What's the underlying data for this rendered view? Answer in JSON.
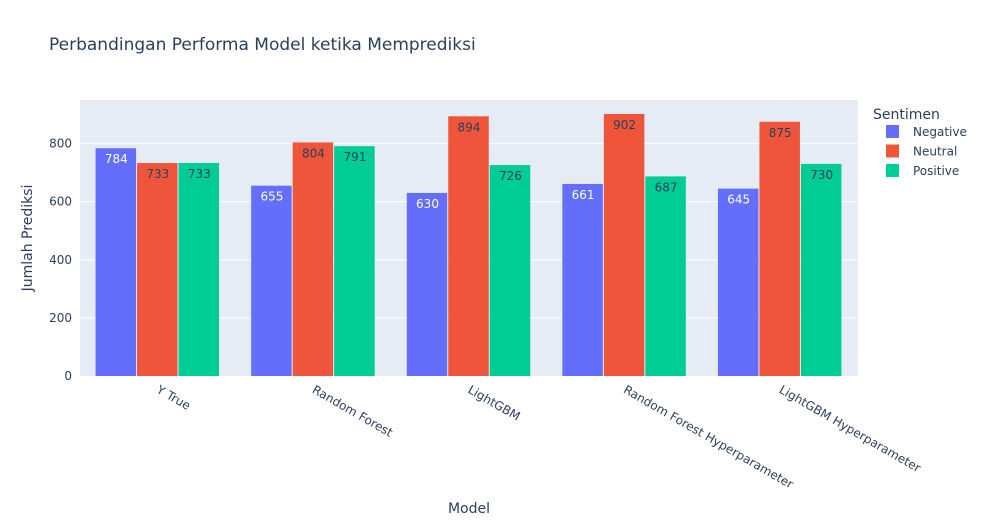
{
  "chart_data": {
    "type": "bar",
    "title": "Perbandingan Performa Model ketika Memprediksi",
    "xlabel": "Model",
    "ylabel": "Jumlah Prediksi",
    "ylim": [
      0,
      950
    ],
    "yticks": [
      0,
      200,
      400,
      600,
      800
    ],
    "grid": true,
    "legend": {
      "title": "Sentimen",
      "position": "right"
    },
    "categories": [
      "Y True",
      "Random Forest",
      "LightGBM",
      "Random Forest Hyperparameter",
      "LightGBM Hyperparameter"
    ],
    "series": [
      {
        "name": "Negative",
        "color": "#636efa",
        "label_color": "#ffffff",
        "values": [
          784,
          655,
          630,
          661,
          645
        ]
      },
      {
        "name": "Neutral",
        "color": "#ef553b",
        "label_color": "#2a3f5f",
        "values": [
          733,
          804,
          894,
          902,
          875
        ]
      },
      {
        "name": "Positive",
        "color": "#00cc96",
        "label_color": "#2a3f5f",
        "values": [
          733,
          791,
          726,
          687,
          730
        ]
      }
    ]
  },
  "colors": {
    "plot_background": "#e5ecf6",
    "text": "#2a3f5f",
    "grid": "#ffffff"
  }
}
